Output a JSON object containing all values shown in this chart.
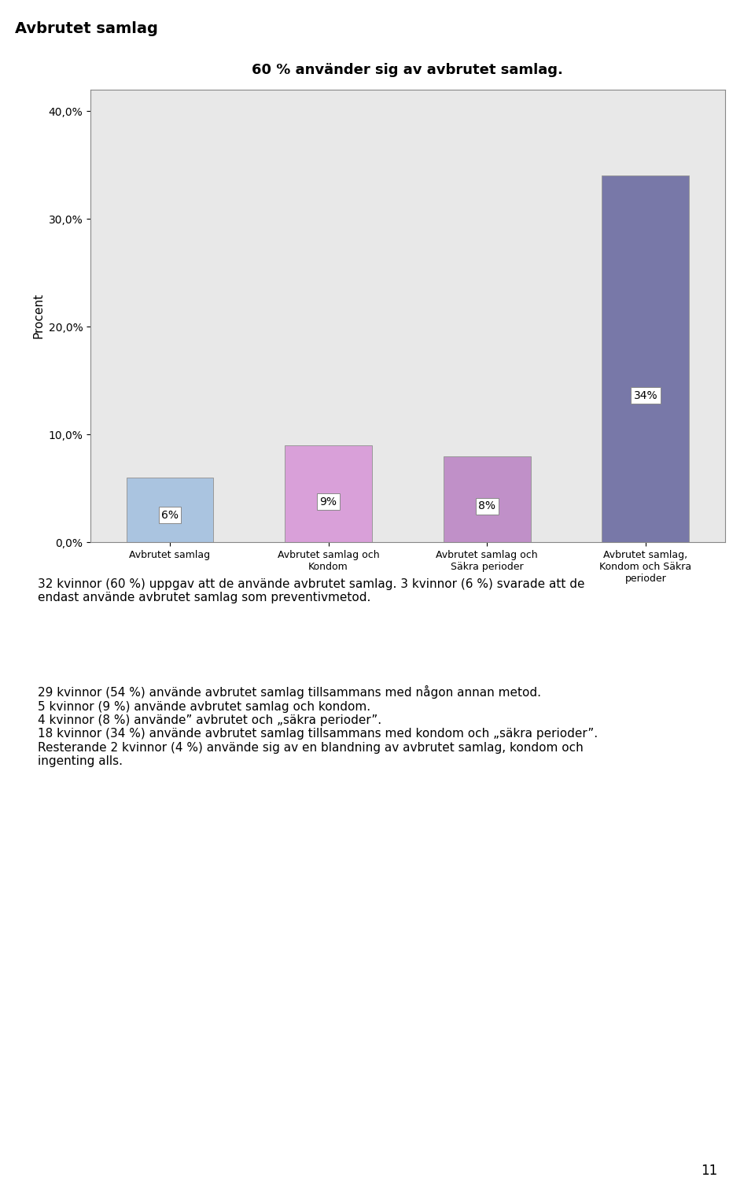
{
  "title": "60 % använder sig av avbrutet samlag.",
  "page_title": "Avbrutet samlag",
  "ylabel": "Procent",
  "categories": [
    "Avbrutet samlag",
    "Avbrutet samlag och\nKondom",
    "Avbrutet samlag och\nSäkra perioder",
    "Avbrutet samlag,\nKondom och Säkra\nperioder"
  ],
  "values": [
    6,
    9,
    8,
    34
  ],
  "bar_colors": [
    "#aac4e0",
    "#d9a0d9",
    "#c090c8",
    "#7878a8"
  ],
  "bar_labels": [
    "6%",
    "9%",
    "8%",
    "34%"
  ],
  "ylim": [
    0,
    42
  ],
  "yticks": [
    0,
    10,
    20,
    30,
    40
  ],
  "ytick_labels": [
    "0,0%",
    "10,0%",
    "20,0%",
    "30,0%",
    "40,0%"
  ],
  "background_color": "#e8e8e8",
  "body_text_1": "32 kvinnor (60 %) uppgav att de använde avbrutet samlag. 3 kvinnor (6 %) svarade att de\nendast använde avbrutet samlag som preventivmetod.",
  "body_text_2": "29 kvinnor (54 %) använde avbrutet samlag tillsammans med någon annan metod.\n5 kvinnor (9 %) använde avbrutet samlag och kondom.\n4 kvinnor (8 %) använde” avbrutet och „säkra perioder”.\n18 kvinnor (34 %) använde avbrutet samlag tillsammans med kondom och „säkra perioder”.\nResterande 2 kvinnor (4 %) använde sig av en blandning av avbrutet samlag, kondom och\ningenting alls.",
  "page_number": "11",
  "title_fontsize": 13,
  "axis_fontsize": 11,
  "tick_fontsize": 10,
  "label_fontsize": 9,
  "body_fontsize": 11
}
